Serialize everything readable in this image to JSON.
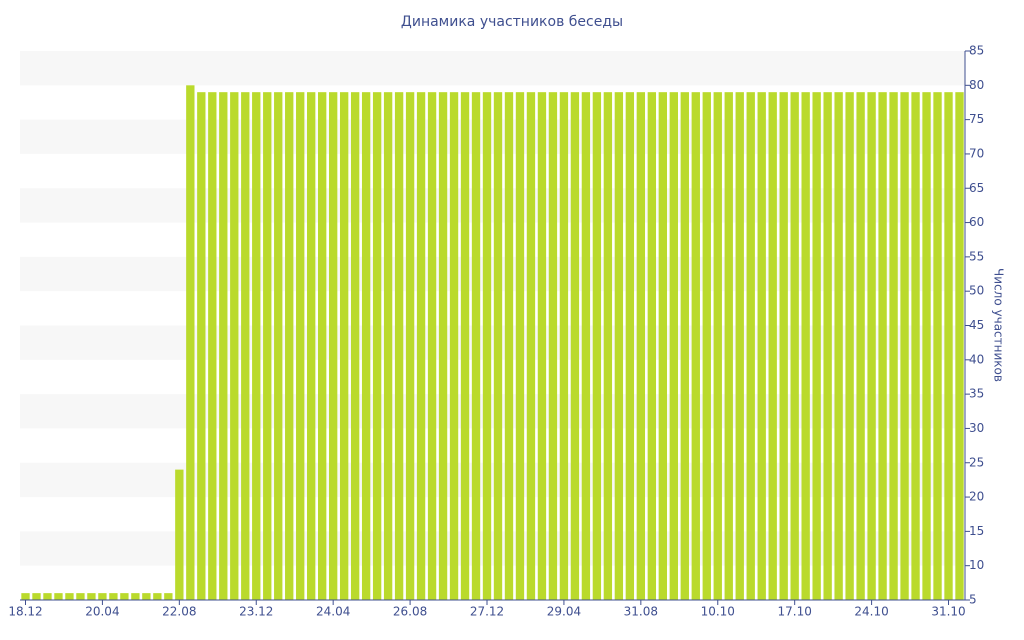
{
  "chart_data": {
    "type": "bar",
    "title": "Динамика участников беседы",
    "y_axis_label": "Число участников",
    "y_axis_side": "right",
    "color": "#bada2c",
    "grid": "bands",
    "categories": [
      "18.12",
      null,
      null,
      null,
      null,
      null,
      null,
      "20.04",
      null,
      null,
      null,
      null,
      null,
      null,
      "22.08",
      null,
      null,
      null,
      null,
      null,
      null,
      "23.12",
      null,
      null,
      null,
      null,
      null,
      null,
      "24.04",
      null,
      null,
      null,
      null,
      null,
      null,
      "26.08",
      null,
      null,
      null,
      null,
      null,
      null,
      "27.12",
      null,
      null,
      null,
      null,
      null,
      null,
      "29.04",
      null,
      null,
      null,
      null,
      null,
      null,
      "31.08",
      null,
      null,
      null,
      null,
      null,
      null,
      "10.10",
      null,
      null,
      null,
      null,
      null,
      null,
      "17.10",
      null,
      null,
      null,
      null,
      null,
      null,
      "24.10",
      null,
      null,
      null,
      null,
      null,
      null,
      "31.10",
      null
    ],
    "values": [
      6,
      6,
      6,
      6,
      6,
      6,
      6,
      6,
      6,
      6,
      6,
      6,
      6,
      6,
      24,
      80,
      79,
      79,
      79,
      79,
      79,
      79,
      79,
      79,
      79,
      79,
      79,
      79,
      79,
      79,
      79,
      79,
      79,
      79,
      79,
      79,
      79,
      79,
      79,
      79,
      79,
      79,
      79,
      79,
      79,
      79,
      79,
      79,
      79,
      79,
      79,
      79,
      79,
      79,
      79,
      79,
      79,
      79,
      79,
      79,
      79,
      79,
      79,
      79,
      79,
      79,
      79,
      79,
      79,
      79,
      79,
      79,
      79,
      79,
      79,
      79,
      79,
      79,
      79,
      79,
      79,
      79,
      79,
      79,
      79,
      79
    ],
    "ylim": [
      5,
      85
    ],
    "yticks": [
      5,
      10,
      15,
      20,
      25,
      30,
      35,
      40,
      45,
      50,
      55,
      60,
      65,
      70,
      75,
      80,
      85
    ]
  }
}
